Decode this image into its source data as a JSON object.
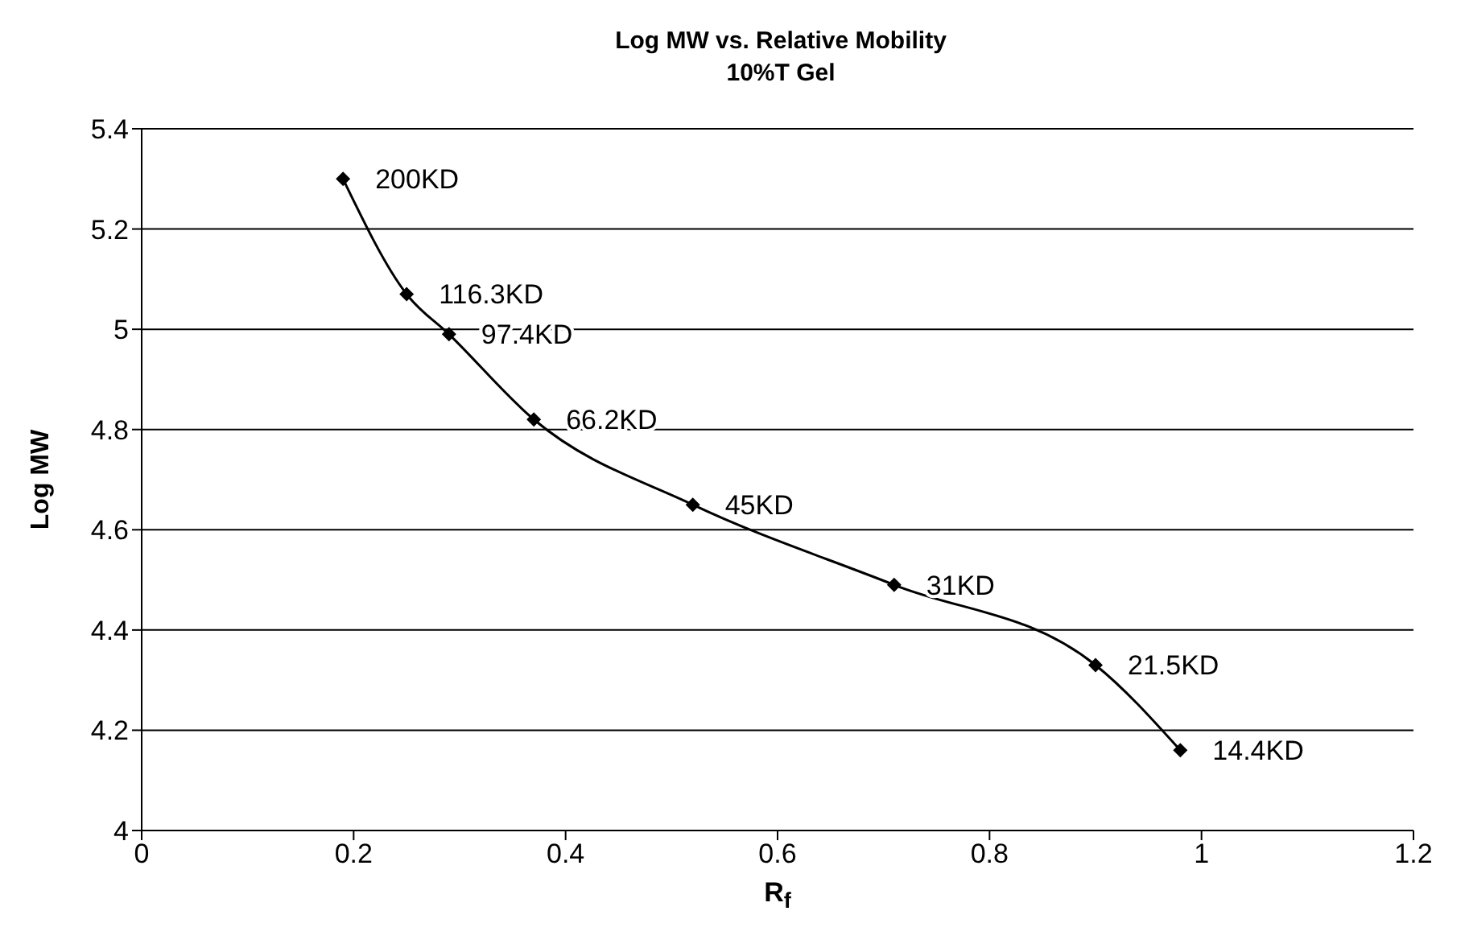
{
  "chart_data": {
    "type": "line",
    "title": "Log MW vs. Relative Mobility",
    "subtitle": "10%T Gel",
    "xlabel": "R$_{f}$",
    "ylabel": "Log MW",
    "x": [
      0.19,
      0.25,
      0.29,
      0.37,
      0.52,
      0.71,
      0.9,
      0.98
    ],
    "series": [
      {
        "color": "#000000",
        "values": [
          5.3,
          5.07,
          4.99,
          4.82,
          4.65,
          4.49,
          4.33,
          4.16
        ]
      }
    ],
    "xlim": [
      0,
      1.2
    ],
    "xticks": [
      0,
      0.2,
      0.4,
      0.6,
      0.8,
      1,
      1.2
    ],
    "ylim": [
      4,
      5.4
    ],
    "yticks": [
      4,
      4.2,
      4.4,
      4.6,
      4.8,
      5,
      5.2,
      5.4
    ],
    "grid": "y",
    "marker": "diamond",
    "line_style": "solid",
    "legend": false,
    "annotations": [
      {
        "text": "200KD",
        "x": 0.19,
        "y": 5.3
      },
      {
        "text": "116.3KD",
        "x": 0.25,
        "y": 5.07
      },
      {
        "text": "97.4KD",
        "x": 0.29,
        "y": 4.99
      },
      {
        "text": "66.2KD",
        "x": 0.37,
        "y": 4.82
      },
      {
        "text": "45KD",
        "x": 0.52,
        "y": 4.65
      },
      {
        "text": "31KD",
        "x": 0.71,
        "y": 4.49
      },
      {
        "text": "21.5KD",
        "x": 0.9,
        "y": 4.33
      },
      {
        "text": "14.4KD",
        "x": 0.98,
        "y": 4.16
      }
    ]
  }
}
